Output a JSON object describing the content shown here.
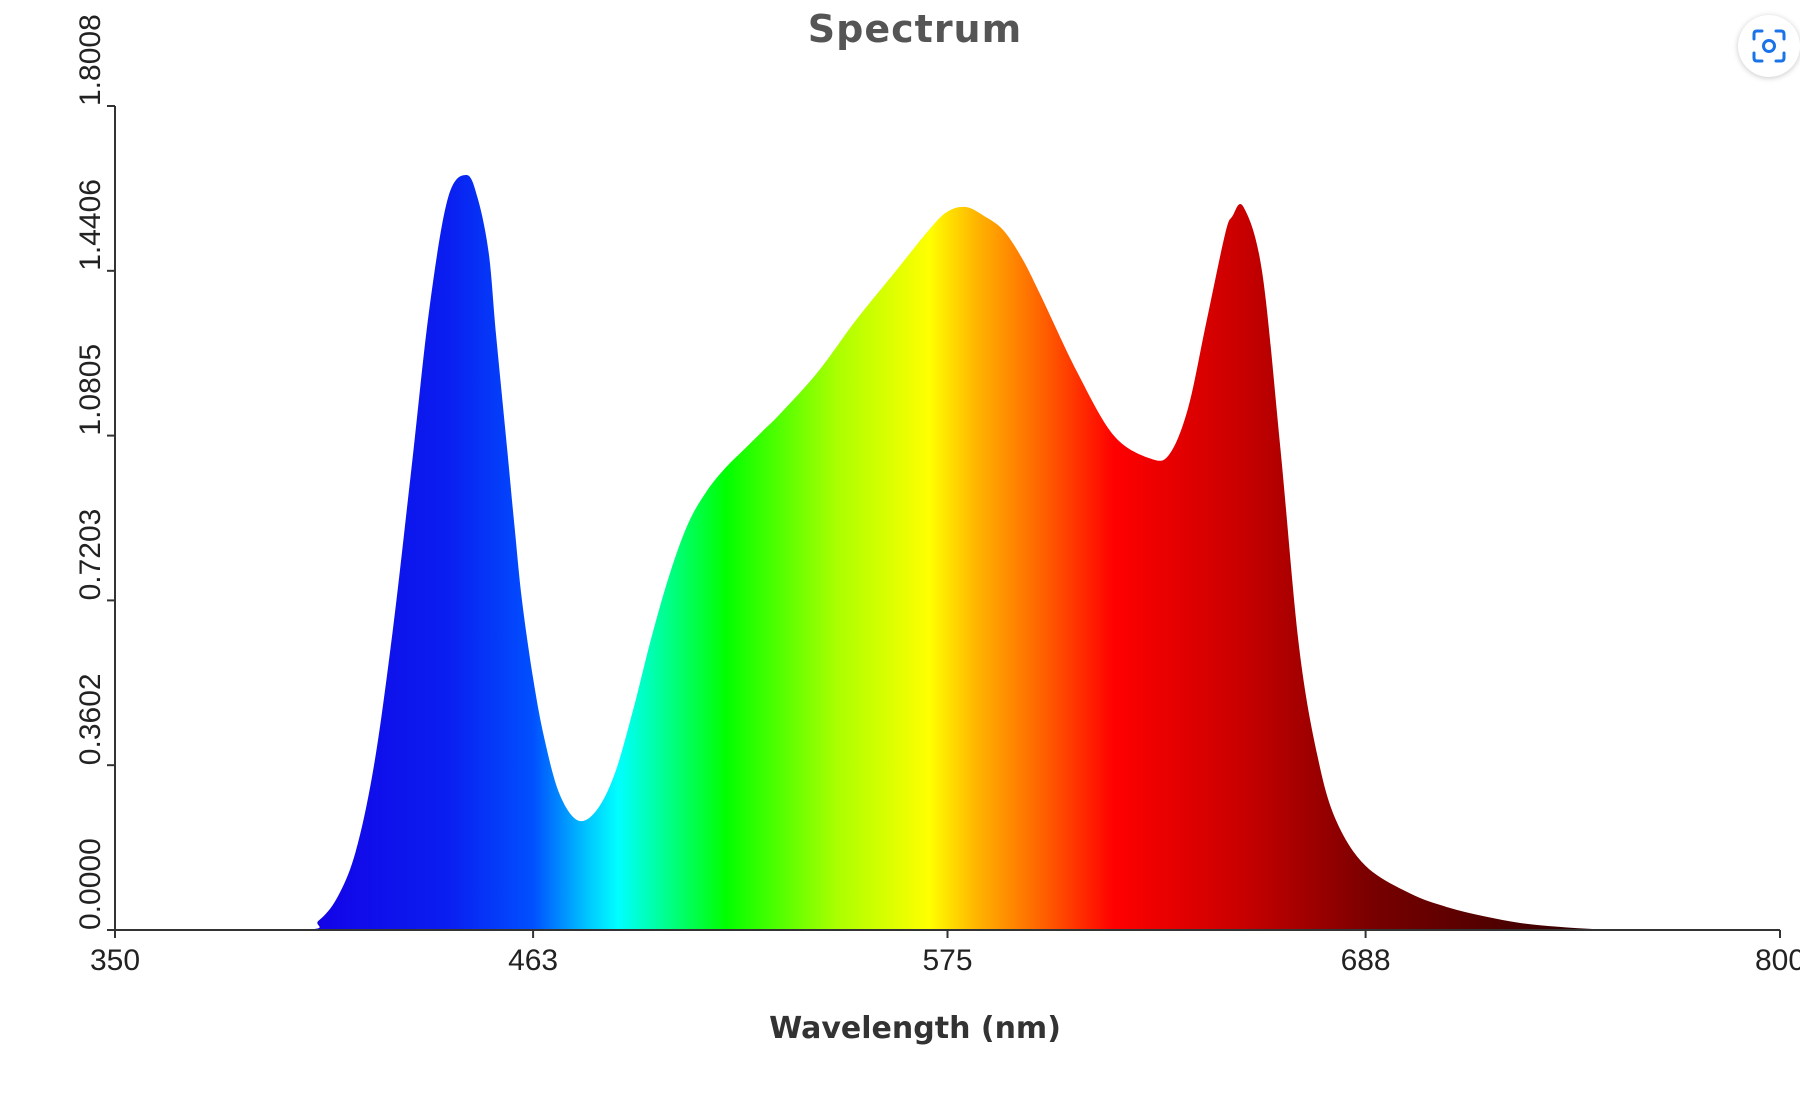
{
  "chart_data": {
    "type": "area",
    "title": "Spectrum",
    "xlabel": "Wavelength (nm)",
    "ylabel": "",
    "xlim": [
      350,
      800
    ],
    "ylim": [
      0,
      1.8008
    ],
    "xticks": [
      350,
      463,
      575,
      688,
      800
    ],
    "yticks": [
      "0.0000",
      "0.3602",
      "0.7203",
      "1.0805",
      "1.4406",
      "1.8008"
    ],
    "grid": false,
    "legend": "none",
    "fill": "visible-spectrum gradient",
    "colors": [
      "#1400e6",
      "#0050ff",
      "#00ffff",
      "#00ff00",
      "#ffff00",
      "#ff8000",
      "#ff0000",
      "#c80000",
      "#3c0000"
    ],
    "series": [
      {
        "x": [
          350,
          400,
          405,
          410,
          415,
          420,
          425,
          430,
          435,
          440,
          445,
          448,
          451,
          453,
          456,
          458,
          460,
          463,
          466,
          470,
          475,
          480,
          485,
          490,
          495,
          500,
          505,
          510,
          515,
          520,
          525,
          530,
          540,
          550,
          560,
          570,
          575,
          580,
          585,
          590,
          595,
          600,
          610,
          620,
          630,
          635,
          640,
          645,
          650,
          652,
          655,
          660,
          665,
          670,
          675,
          680,
          688,
          700,
          710,
          720,
          730,
          740,
          750,
          760,
          800
        ],
        "y": [
          0,
          0,
          0.02,
          0.07,
          0.17,
          0.36,
          0.65,
          1.0,
          1.36,
          1.6,
          1.65,
          1.6,
          1.48,
          1.3,
          1.05,
          0.88,
          0.72,
          0.55,
          0.42,
          0.3,
          0.24,
          0.26,
          0.34,
          0.48,
          0.64,
          0.78,
          0.89,
          0.96,
          1.01,
          1.05,
          1.09,
          1.13,
          1.22,
          1.33,
          1.43,
          1.53,
          1.57,
          1.58,
          1.56,
          1.53,
          1.47,
          1.39,
          1.22,
          1.08,
          1.03,
          1.04,
          1.14,
          1.33,
          1.52,
          1.56,
          1.58,
          1.44,
          1.05,
          0.62,
          0.38,
          0.24,
          0.14,
          0.08,
          0.05,
          0.03,
          0.015,
          0.007,
          0.002,
          0,
          0
        ]
      }
    ]
  },
  "lens_button": {
    "icon": "lens-icon"
  }
}
